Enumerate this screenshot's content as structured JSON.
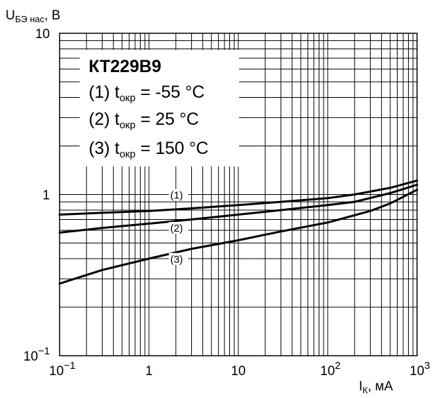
{
  "chart_data": {
    "type": "line",
    "x_scale": "log",
    "y_scale": "log",
    "xlim": [
      0.1,
      1000
    ],
    "ylim": [
      0.1,
      10
    ],
    "grid": true,
    "x_ticks": [
      {
        "value": 0.1,
        "base": "10",
        "exp": "−1"
      },
      {
        "value": 1,
        "base": "1",
        "exp": ""
      },
      {
        "value": 10,
        "base": "10",
        "exp": ""
      },
      {
        "value": 100,
        "base": "10",
        "exp": "2"
      },
      {
        "value": 1000,
        "base": "10",
        "exp": "3"
      }
    ],
    "y_ticks": [
      {
        "value": 0.1,
        "base": "10",
        "exp": "−1"
      },
      {
        "value": 1,
        "base": "1",
        "exp": ""
      },
      {
        "value": 10,
        "base": "10",
        "exp": ""
      }
    ],
    "ylabel": {
      "main": "U",
      "sub": "БЭ нас",
      "rest": ", В"
    },
    "xlabel": {
      "main": "I",
      "sub": "К",
      "rest": ", мА"
    },
    "legend": {
      "title": "КТ229В9",
      "entries": [
        {
          "num": "(1) t",
          "sub": "окр",
          "value": " = -55 °C"
        },
        {
          "num": "(2) t",
          "sub": "окр",
          "value": " =  25 °C"
        },
        {
          "num": "(3) t",
          "sub": "окр",
          "value": " = 150 °C"
        }
      ]
    },
    "series": [
      {
        "label": "(1)",
        "label_at": [
          1.5,
          0.96
        ],
        "points": [
          [
            0.1,
            0.75
          ],
          [
            0.3,
            0.77
          ],
          [
            1,
            0.79
          ],
          [
            3,
            0.82
          ],
          [
            10,
            0.86
          ],
          [
            30,
            0.9
          ],
          [
            100,
            0.95
          ],
          [
            200,
            1.0
          ],
          [
            500,
            1.1
          ],
          [
            1000,
            1.22
          ]
        ]
      },
      {
        "label": "(2)",
        "label_at": [
          1.5,
          0.6
        ],
        "points": [
          [
            0.1,
            0.58
          ],
          [
            0.3,
            0.62
          ],
          [
            1,
            0.66
          ],
          [
            3,
            0.7
          ],
          [
            10,
            0.75
          ],
          [
            30,
            0.8
          ],
          [
            100,
            0.86
          ],
          [
            200,
            0.9
          ],
          [
            500,
            1.02
          ],
          [
            1000,
            1.15
          ]
        ]
      },
      {
        "label": "(3)",
        "label_at": [
          1.5,
          0.385
        ],
        "points": [
          [
            0.1,
            0.28
          ],
          [
            0.3,
            0.34
          ],
          [
            1,
            0.4
          ],
          [
            3,
            0.46
          ],
          [
            10,
            0.52
          ],
          [
            30,
            0.59
          ],
          [
            100,
            0.67
          ],
          [
            300,
            0.79
          ],
          [
            500,
            0.88
          ],
          [
            1000,
            1.07
          ]
        ]
      }
    ]
  }
}
